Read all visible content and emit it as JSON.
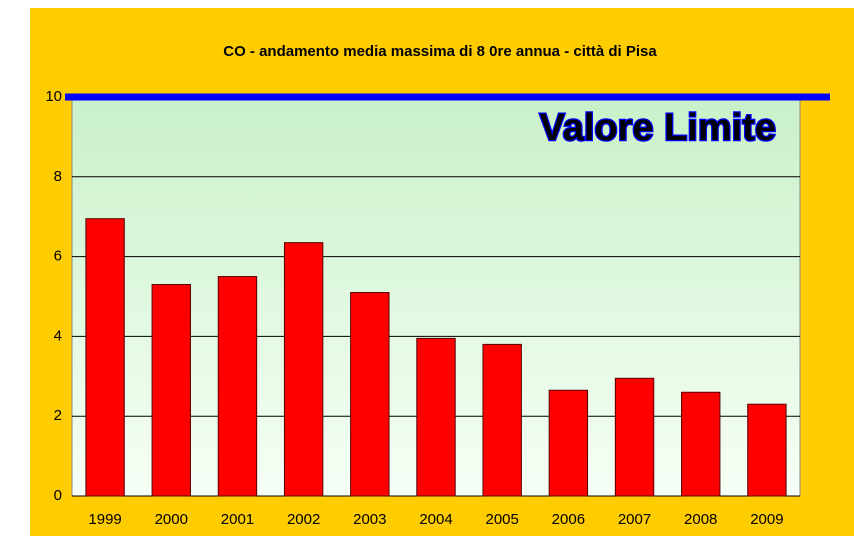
{
  "chart_data": {
    "type": "bar",
    "title": "CO - andamento media massima di 8 0re annua - città di Pisa",
    "categories": [
      "1999",
      "2000",
      "2001",
      "2002",
      "2003",
      "2004",
      "2005",
      "2006",
      "2007",
      "2008",
      "2009"
    ],
    "values": [
      6.95,
      5.3,
      5.5,
      6.35,
      5.1,
      3.95,
      3.8,
      2.65,
      2.95,
      2.6,
      2.3
    ],
    "color": "#ff0000",
    "ylim": [
      0,
      10
    ],
    "yticks": [
      0,
      2,
      4,
      6,
      8,
      10
    ],
    "grid": true,
    "limit": {
      "value": 10,
      "label": "Valore Limite",
      "color": "#0000ff"
    }
  }
}
